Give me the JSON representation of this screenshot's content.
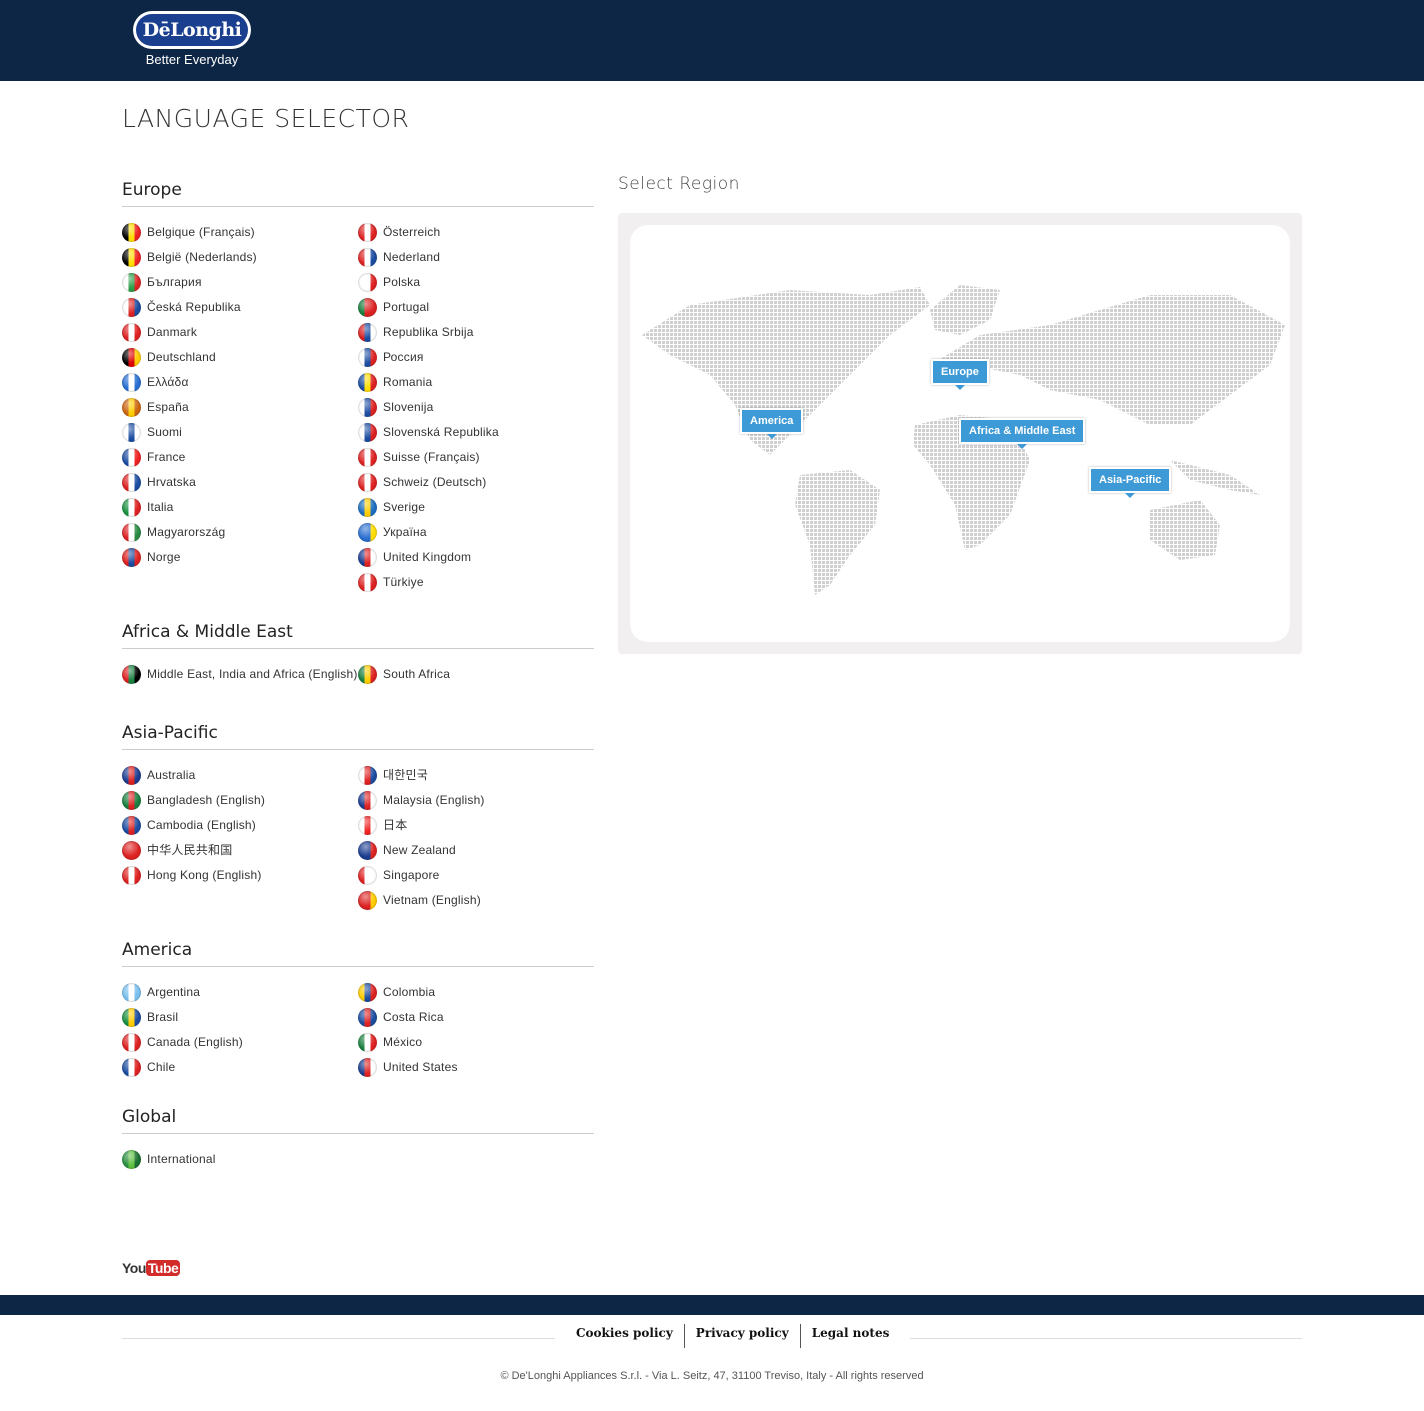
{
  "header": {
    "logo_text": "DēLonghi",
    "tagline": "Better Everyday"
  },
  "page_title": "LANGUAGE SELECTOR",
  "regions": [
    {
      "title": "Europe",
      "columns": [
        [
          [
            "Belgique (Français)",
            "#000,#fd0,#e22"
          ],
          [
            "België (Nederlands)",
            "#000,#fd0,#e22"
          ],
          [
            "България",
            "#fff,#2a9d47,#d22"
          ],
          [
            "Česká Republika",
            "#fff,#d22,#1c4da1"
          ],
          [
            "Danmark",
            "#d22,#fff,#d22"
          ],
          [
            "Deutschland",
            "#000,#d00,#fc0"
          ],
          [
            "Ελλάδα",
            "#2a6fd1,#fff,#2a6fd1"
          ],
          [
            "España",
            "#c61,#fc0,#c61"
          ],
          [
            "Suomi",
            "#fff,#1c4da1,#fff"
          ],
          [
            "France",
            "#1c4da1,#fff,#e22"
          ],
          [
            "Hrvatska",
            "#d22,#fff,#1c4da1"
          ],
          [
            "Italia",
            "#1a9040,#fff,#d22"
          ],
          [
            "Magyarország",
            "#d22,#fff,#2a8a44"
          ],
          [
            "Norge",
            "#d22,#1c4da1,#d22"
          ]
        ],
        [
          [
            "Österreich",
            "#d22,#fff,#d22"
          ],
          [
            "Nederland",
            "#d22,#fff,#1c4da1"
          ],
          [
            "Polska",
            "#fff,#fff,#d22"
          ],
          [
            "Portugal",
            "#1a8040,#d22,#d22"
          ],
          [
            "Republika Srbija",
            "#d22,#1c4da1,#fff"
          ],
          [
            "Россия",
            "#fff,#1c4da1,#d22"
          ],
          [
            "Romania",
            "#1c4da1,#fd0,#d22"
          ],
          [
            "Slovenija",
            "#fff,#1c4da1,#d22"
          ],
          [
            "Slovenská Republika",
            "#fff,#1c4da1,#d22"
          ],
          [
            "Suisse (Français)",
            "#d22,#fff,#d22"
          ],
          [
            "Schweiz (Deutsch)",
            "#d22,#fff,#d22"
          ],
          [
            "Sverige",
            "#1c6fc1,#fc0,#1c6fc1"
          ],
          [
            "Україна",
            "#2a6fd1,#2a6fd1,#fd0"
          ],
          [
            "United Kingdom",
            "#1c3d91,#d22,#fff"
          ],
          [
            "Türkiye",
            "#d22,#fff,#d22"
          ]
        ]
      ]
    },
    {
      "title": "Africa & Middle East",
      "columns": [
        [
          [
            "Middle East, India and Africa (English)",
            "#d22,#1a8040,#000"
          ]
        ],
        [
          [
            "South Africa",
            "#1a8040,#fc0,#d22"
          ]
        ]
      ]
    },
    {
      "title": "Asia-Pacific",
      "columns": [
        [
          [
            "Australia",
            "#1c3d91,#d22,#1c3d91"
          ],
          [
            "Bangladesh (English)",
            "#1a8040,#d22,#1a8040"
          ],
          [
            "Cambodia (English)",
            "#1c4da1,#d22,#1c4da1"
          ],
          [
            "中华人民共和国",
            "#d22,#d22,#d22"
          ],
          [
            "Hong Kong (English)",
            "#d22,#fff,#d22"
          ]
        ],
        [
          [
            "대한민국",
            "#fff,#d22,#1c4da1"
          ],
          [
            "Malaysia (English)",
            "#1c3d91,#d22,#fff"
          ],
          [
            "日本",
            "#fff,#e22,#fff"
          ],
          [
            "New Zealand",
            "#1c3d91,#1c3d91,#d22"
          ],
          [
            "Singapore",
            "#d22,#fff,#fff"
          ],
          [
            "Vietnam (English)",
            "#d22,#d22,#fc0"
          ]
        ]
      ]
    },
    {
      "title": "America",
      "columns": [
        [
          [
            "Argentina",
            "#7bc0ee,#fff,#7bc0ee"
          ],
          [
            "Brasil",
            "#1a9040,#fc0,#1c4da1"
          ],
          [
            "Canada (English)",
            "#d22,#fff,#d22"
          ],
          [
            "Chile",
            "#1c4da1,#fff,#d22"
          ]
        ],
        [
          [
            "Colombia",
            "#fc0,#1c4da1,#d22"
          ],
          [
            "Costa Rica",
            "#1c4da1,#d22,#1c4da1"
          ],
          [
            "México",
            "#1a8040,#fff,#d22"
          ],
          [
            "United States",
            "#1c3d91,#d22,#fff"
          ]
        ]
      ]
    },
    {
      "title": "Global",
      "columns": [
        [
          [
            "International",
            "#2a9040,#5cc040,#1a7030"
          ]
        ],
        []
      ]
    }
  ],
  "map": {
    "title": "Select Region",
    "pins": [
      "America",
      "Europe",
      "Africa & Middle East",
      "Asia-Pacific"
    ],
    "pin_color": "#3d9ad6"
  },
  "social": {
    "you": "You",
    "tube": "Tube"
  },
  "footer": {
    "links": [
      "Cookies policy",
      "Privacy policy",
      "Legal notes"
    ],
    "copyright": "© De'Longhi Appliances S.r.l. - Via L. Seitz, 47, 31100 Treviso, Italy - All rights reserved"
  }
}
